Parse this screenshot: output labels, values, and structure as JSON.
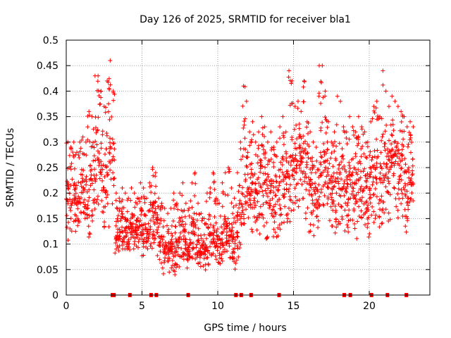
{
  "chart_data": {
    "type": "scatter",
    "title": "Day 126 of 2025, SRMTID for receiver bla1",
    "xlabel": "GPS time / hours",
    "ylabel": "SRMTID / TECUs",
    "xlim": [
      0,
      24
    ],
    "ylim": [
      0,
      0.5
    ],
    "grid": true,
    "legend": "none",
    "marker": "+",
    "color": "#ff0000",
    "x_ticks": [
      "0",
      "5",
      "10",
      "15",
      "20"
    ],
    "x_tick_values": [
      0,
      5,
      10,
      15,
      20
    ],
    "y_ticks": [
      "0",
      "0.05",
      "0.1",
      "0.15",
      "0.2",
      "0.25",
      "0.3",
      "0.35",
      "0.4",
      "0.45",
      "0.5"
    ],
    "y_tick_values": [
      0,
      0.05,
      0.1,
      0.15,
      0.2,
      0.25,
      0.3,
      0.35,
      0.4,
      0.45,
      0.5
    ],
    "data_end_hour": 22.9,
    "series": [
      {
        "name": "SRMTID",
        "x": [
          0.0,
          0.2,
          0.4,
          0.6,
          0.8,
          1.0,
          1.2,
          1.4,
          1.6,
          1.8,
          2.0,
          2.2,
          2.4,
          2.6,
          2.8,
          3.0,
          3.2,
          3.4,
          3.6,
          3.8,
          4.0,
          4.2,
          4.4,
          4.6,
          4.8,
          5.0,
          5.2,
          5.4,
          5.6,
          5.8,
          6.0,
          6.2,
          6.4,
          6.6,
          6.8,
          7.0,
          7.2,
          7.4,
          7.6,
          7.8,
          8.0,
          8.2,
          8.4,
          8.6,
          8.8,
          9.0,
          9.2,
          9.4,
          9.6,
          9.8,
          10.0,
          10.2,
          10.4,
          10.6,
          10.8,
          11.0,
          11.2,
          11.4,
          11.6,
          11.8,
          12.0,
          12.2,
          12.4,
          12.6,
          12.8,
          13.0,
          13.2,
          13.4,
          13.6,
          13.8,
          14.0,
          14.2,
          14.4,
          14.6,
          14.8,
          15.0,
          15.2,
          15.4,
          15.6,
          15.8,
          16.0,
          16.2,
          16.4,
          16.6,
          16.8,
          17.0,
          17.2,
          17.4,
          17.6,
          17.8,
          18.0,
          18.2,
          18.4,
          18.6,
          18.8,
          19.0,
          19.2,
          19.4,
          19.6,
          19.8,
          20.0,
          20.2,
          20.4,
          20.6,
          20.8,
          21.0,
          21.2,
          21.4,
          21.6,
          21.8,
          22.0,
          22.2,
          22.4,
          22.6,
          22.8
        ],
        "median": [
          0.19,
          0.2,
          0.21,
          0.19,
          0.2,
          0.21,
          0.18,
          0.19,
          0.22,
          0.24,
          0.27,
          0.26,
          0.22,
          0.24,
          0.29,
          0.25,
          0.13,
          0.12,
          0.14,
          0.13,
          0.12,
          0.14,
          0.13,
          0.12,
          0.14,
          0.13,
          0.12,
          0.14,
          0.16,
          0.15,
          0.12,
          0.11,
          0.1,
          0.09,
          0.1,
          0.09,
          0.1,
          0.11,
          0.12,
          0.1,
          0.09,
          0.11,
          0.12,
          0.1,
          0.09,
          0.08,
          0.1,
          0.11,
          0.12,
          0.1,
          0.09,
          0.11,
          0.13,
          0.14,
          0.12,
          0.1,
          0.13,
          0.17,
          0.22,
          0.23,
          0.21,
          0.22,
          0.2,
          0.21,
          0.23,
          0.22,
          0.2,
          0.21,
          0.19,
          0.2,
          0.22,
          0.23,
          0.21,
          0.24,
          0.26,
          0.25,
          0.27,
          0.28,
          0.25,
          0.24,
          0.22,
          0.2,
          0.19,
          0.23,
          0.27,
          0.25,
          0.22,
          0.2,
          0.21,
          0.23,
          0.24,
          0.22,
          0.21,
          0.23,
          0.22,
          0.21,
          0.23,
          0.22,
          0.21,
          0.2,
          0.22,
          0.24,
          0.25,
          0.23,
          0.24,
          0.26,
          0.25,
          0.27,
          0.26,
          0.25,
          0.24,
          0.23,
          0.22,
          0.23,
          0.22
        ],
        "min": [
          0.08,
          0.12,
          0.14,
          0.11,
          0.1,
          0.12,
          0.09,
          0.08,
          0.12,
          0.13,
          0.16,
          0.15,
          0.13,
          0.12,
          0.12,
          0.1,
          0.07,
          0.08,
          0.09,
          0.08,
          0.08,
          0.09,
          0.08,
          0.08,
          0.09,
          0.07,
          0.07,
          0.09,
          0.09,
          0.08,
          0.06,
          0.05,
          0.04,
          0.04,
          0.05,
          0.04,
          0.05,
          0.05,
          0.06,
          0.05,
          0.05,
          0.05,
          0.06,
          0.06,
          0.04,
          0.04,
          0.05,
          0.06,
          0.06,
          0.05,
          0.05,
          0.05,
          0.07,
          0.07,
          0.06,
          0.05,
          0.06,
          0.08,
          0.12,
          0.12,
          0.11,
          0.12,
          0.12,
          0.11,
          0.13,
          0.12,
          0.11,
          0.12,
          0.11,
          0.11,
          0.12,
          0.12,
          0.11,
          0.14,
          0.15,
          0.14,
          0.16,
          0.16,
          0.14,
          0.13,
          0.12,
          0.11,
          0.1,
          0.13,
          0.16,
          0.14,
          0.12,
          0.11,
          0.12,
          0.13,
          0.13,
          0.12,
          0.11,
          0.12,
          0.12,
          0.11,
          0.12,
          0.12,
          0.11,
          0.1,
          0.12,
          0.14,
          0.14,
          0.13,
          0.14,
          0.15,
          0.14,
          0.16,
          0.15,
          0.15,
          0.14,
          0.13,
          0.12,
          0.14,
          0.13
        ],
        "max": [
          0.3,
          0.29,
          0.3,
          0.28,
          0.3,
          0.31,
          0.3,
          0.36,
          0.35,
          0.43,
          0.43,
          0.4,
          0.37,
          0.42,
          0.46,
          0.4,
          0.2,
          0.19,
          0.21,
          0.2,
          0.19,
          0.21,
          0.2,
          0.19,
          0.22,
          0.21,
          0.19,
          0.22,
          0.25,
          0.24,
          0.19,
          0.18,
          0.17,
          0.16,
          0.17,
          0.2,
          0.18,
          0.2,
          0.22,
          0.18,
          0.17,
          0.22,
          0.24,
          0.18,
          0.16,
          0.15,
          0.2,
          0.21,
          0.24,
          0.19,
          0.18,
          0.22,
          0.24,
          0.25,
          0.21,
          0.19,
          0.24,
          0.3,
          0.41,
          0.38,
          0.32,
          0.34,
          0.3,
          0.32,
          0.35,
          0.33,
          0.3,
          0.32,
          0.29,
          0.3,
          0.33,
          0.35,
          0.32,
          0.44,
          0.42,
          0.37,
          0.38,
          0.36,
          0.42,
          0.34,
          0.32,
          0.3,
          0.29,
          0.45,
          0.45,
          0.4,
          0.34,
          0.3,
          0.32,
          0.39,
          0.38,
          0.33,
          0.32,
          0.35,
          0.33,
          0.32,
          0.35,
          0.33,
          0.32,
          0.3,
          0.34,
          0.37,
          0.38,
          0.35,
          0.44,
          0.4,
          0.37,
          0.39,
          0.38,
          0.37,
          0.36,
          0.35,
          0.33,
          0.34,
          0.33
        ]
      }
    ],
    "zero_markers_x": [
      3.05,
      3.15,
      4.2,
      5.6,
      5.95,
      8.05,
      11.2,
      11.55,
      12.2,
      14.05,
      18.35,
      18.75,
      20.15,
      21.2,
      22.45
    ]
  }
}
